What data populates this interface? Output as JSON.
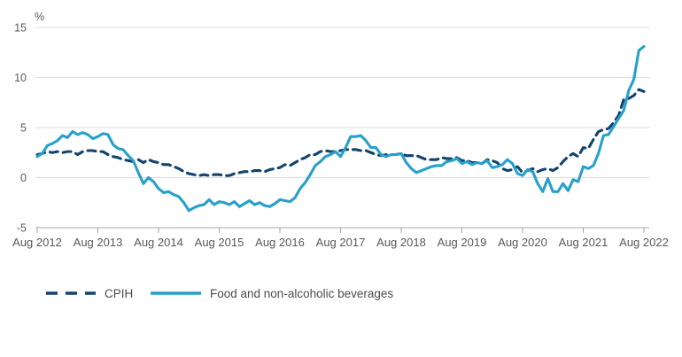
{
  "chart": {
    "background": "#ffffff",
    "grid_color": "#dcdcdc",
    "axis_color": "#a6a6a6",
    "text_color": "#58595B"
  },
  "chart_data": {
    "type": "line",
    "title": "",
    "ylabel": "%",
    "xlabel": "",
    "ylim": [
      -5,
      15
    ],
    "y_ticks": [
      15,
      10,
      5,
      0,
      -5
    ],
    "grid": true,
    "legend_position": "bottom-left",
    "x_frequency": "monthly",
    "x_range": [
      "Aug 2012",
      "Aug 2022"
    ],
    "x_tick_labels": [
      "Aug 2012",
      "Aug 2013",
      "Aug 2014",
      "Aug 2015",
      "Aug 2016",
      "Aug 2017",
      "Aug 2018",
      "Aug 2019",
      "Aug 2020",
      "Aug 2021",
      "Aug 2022"
    ],
    "series": [
      {
        "name": "CPIH",
        "style": "dashed",
        "color": "#12436D",
        "values": [
          2.3,
          2.4,
          2.6,
          2.5,
          2.6,
          2.5,
          2.6,
          2.6,
          2.3,
          2.6,
          2.7,
          2.7,
          2.6,
          2.6,
          2.3,
          2.1,
          2.0,
          1.8,
          1.7,
          1.6,
          1.8,
          1.5,
          1.8,
          1.6,
          1.5,
          1.3,
          1.3,
          1.1,
          0.9,
          0.6,
          0.4,
          0.3,
          0.2,
          0.3,
          0.2,
          0.3,
          0.3,
          0.2,
          0.2,
          0.4,
          0.5,
          0.6,
          0.6,
          0.7,
          0.7,
          0.6,
          0.8,
          0.9,
          1.0,
          1.3,
          1.2,
          1.5,
          1.8,
          2.0,
          2.3,
          2.3,
          2.6,
          2.7,
          2.6,
          2.6,
          2.7,
          2.8,
          2.8,
          2.8,
          2.7,
          2.7,
          2.5,
          2.3,
          2.2,
          2.3,
          2.3,
          2.3,
          2.4,
          2.2,
          2.2,
          2.2,
          2.0,
          1.8,
          1.8,
          1.8,
          2.0,
          1.9,
          1.9,
          2.0,
          1.7,
          1.7,
          1.5,
          1.5,
          1.4,
          1.8,
          1.7,
          1.5,
          0.9,
          0.7,
          0.8,
          1.1,
          0.5,
          0.7,
          0.9,
          0.6,
          0.8,
          0.9,
          0.7,
          1.0,
          1.6,
          2.1,
          2.4,
          2.1,
          3.0,
          2.9,
          3.8,
          4.6,
          4.8,
          4.9,
          5.5,
          6.2,
          7.8,
          7.9,
          8.2,
          8.8,
          8.6
        ]
      },
      {
        "name": "Food and non-alcoholic beverages",
        "style": "solid",
        "color": "#27A0CC",
        "values": [
          2.1,
          2.4,
          3.2,
          3.4,
          3.7,
          4.2,
          4.0,
          4.6,
          4.3,
          4.5,
          4.3,
          3.9,
          4.1,
          4.4,
          4.3,
          3.3,
          2.9,
          2.8,
          2.2,
          1.7,
          0.5,
          -0.6,
          0.0,
          -0.4,
          -1.1,
          -1.5,
          -1.4,
          -1.7,
          -1.9,
          -2.5,
          -3.3,
          -3.0,
          -2.8,
          -2.7,
          -2.2,
          -2.7,
          -2.4,
          -2.5,
          -2.7,
          -2.4,
          -2.9,
          -2.6,
          -2.3,
          -2.7,
          -2.5,
          -2.8,
          -2.9,
          -2.6,
          -2.2,
          -2.3,
          -2.4,
          -2.0,
          -1.1,
          -0.5,
          0.3,
          1.2,
          1.6,
          2.1,
          2.3,
          2.6,
          2.1,
          3.0,
          4.1,
          4.1,
          4.2,
          3.7,
          3.0,
          3.0,
          2.3,
          2.1,
          2.3,
          2.3,
          2.4,
          1.5,
          0.9,
          0.5,
          0.7,
          0.9,
          1.1,
          1.2,
          1.2,
          1.6,
          1.7,
          1.9,
          1.4,
          1.6,
          1.3,
          1.5,
          1.4,
          1.7,
          1.0,
          1.1,
          1.3,
          1.8,
          1.4,
          0.4,
          0.2,
          0.8,
          0.6,
          -0.6,
          -1.4,
          -0.1,
          -1.4,
          -1.4,
          -0.6,
          -1.3,
          -0.2,
          -0.4,
          1.1,
          0.9,
          1.2,
          2.4,
          4.2,
          4.3,
          5.1,
          5.9,
          6.7,
          8.7,
          9.8,
          12.7,
          13.1
        ]
      }
    ]
  }
}
